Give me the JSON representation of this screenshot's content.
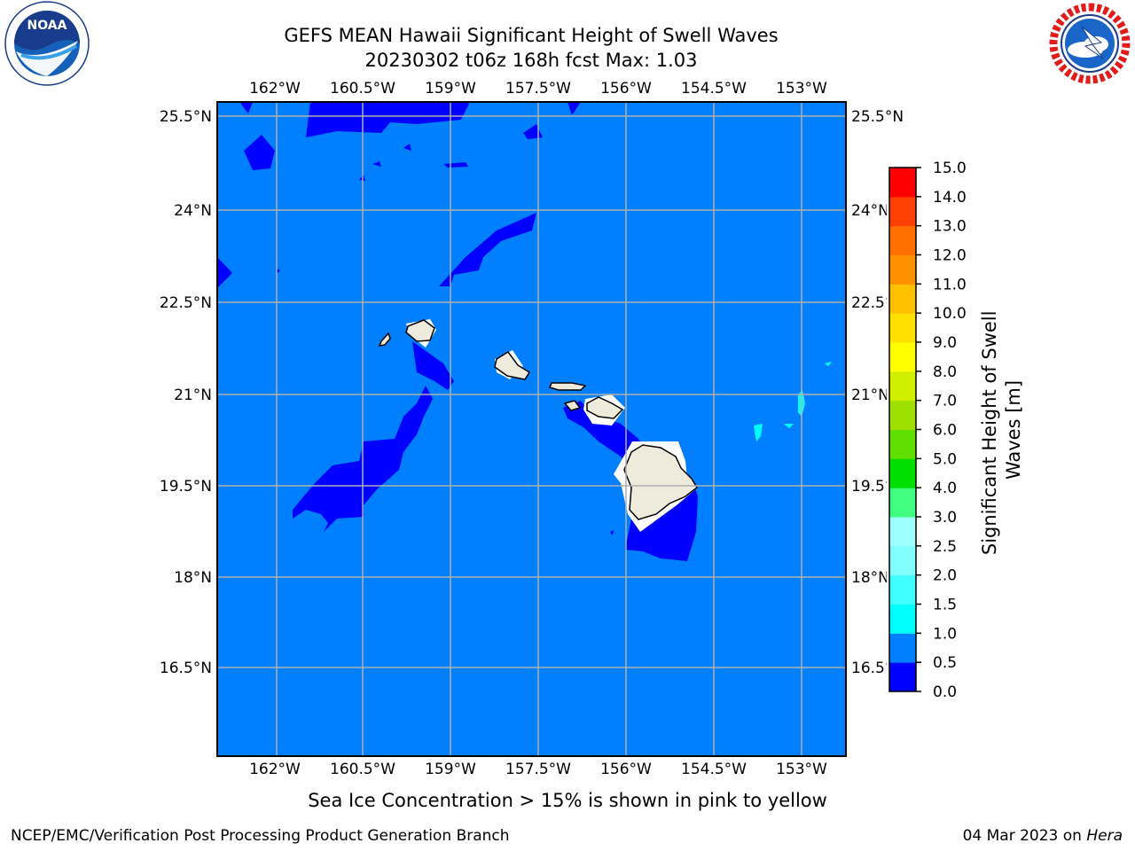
{
  "header": {
    "title_line1": "GEFS MEAN Hawaii Significant Height of Swell Waves",
    "title_line2": "20230302 t06z 168h fcst   Max: 1.03"
  },
  "logos": {
    "left": {
      "name": "NOAA",
      "ring_text": "NATIONAL OCEANIC AND ATMOSPHERIC ADMINISTRATION · U.S. DEPARTMENT OF COMMERCE"
    },
    "right": {
      "name": "NATIONAL WEATHER SERVICE"
    }
  },
  "map": {
    "lon_labels": [
      "162°W",
      "160.5°W",
      "159°W",
      "157.5°W",
      "156°W",
      "154.5°W",
      "153°W"
    ],
    "lat_labels": [
      "25.5°N",
      "24°N",
      "22.5°N",
      "21°N",
      "19.5°N",
      "18°N",
      "16.5°N"
    ],
    "ocean_color": "#0080ff",
    "low_color": "#0000ff",
    "land_color": "#eeeadc"
  },
  "colorbar": {
    "label": "Significant Height of Swell Waves [m]",
    "ticks": [
      "0.0",
      "0.5",
      "1.0",
      "1.5",
      "2.0",
      "2.5",
      "3.0",
      "4.0",
      "5.0",
      "6.0",
      "7.0",
      "8.0",
      "9.0",
      "10.0",
      "11.0",
      "12.0",
      "13.0",
      "14.0",
      "15.0"
    ],
    "colors": [
      "#0000ff",
      "#0080ff",
      "#00ffff",
      "#40ffff",
      "#80ffff",
      "#a0ffff",
      "#40ff80",
      "#00e000",
      "#60e000",
      "#a0e000",
      "#d0f000",
      "#ffff00",
      "#ffe000",
      "#ffc000",
      "#ff9000",
      "#ff7000",
      "#ff4000",
      "#ff0000"
    ]
  },
  "note": "Sea Ice Concentration > 15% is shown in pink to yellow",
  "footer": {
    "left": "NCEP/EMC/Verification Post Processing Product Generation Branch",
    "right_prefix": "04 Mar 2023 on ",
    "right_host": "Hera"
  }
}
